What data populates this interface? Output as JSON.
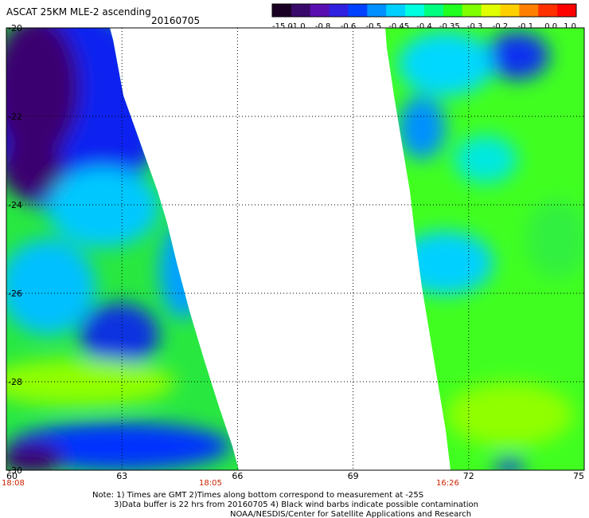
{
  "header": {
    "title": "ASCAT 25KM MLE-2 ascending",
    "date": "20160705"
  },
  "colorbar": {
    "labels": [
      "-15.0",
      "-1.0",
      "-0.8",
      "-0.6",
      "-0.5",
      "-0.45",
      "-0.4",
      "-0.35",
      "-0.3",
      "-0.2",
      "-0.1",
      "0.0",
      "1.0"
    ],
    "colors": [
      "#1a0022",
      "#3a0a6a",
      "#5a10b0",
      "#3020e0",
      "#0040ff",
      "#0090ff",
      "#00d0ff",
      "#00ffe0",
      "#00ff80",
      "#20ff20",
      "#80ff00",
      "#e0ff00",
      "#ffd000",
      "#ff8000",
      "#ff3000",
      "#ff0000"
    ]
  },
  "map": {
    "x_ticks": [
      "60",
      "63",
      "66",
      "69",
      "72",
      "75"
    ],
    "y_ticks": [
      "-20",
      "-22",
      "-24",
      "-26",
      "-28",
      "-30"
    ],
    "times": [
      "18:08",
      "18:05",
      "16:26"
    ]
  },
  "notes": [
    "Note: 1) Times are GMT 2)Times along bottom correspond to measurement at -25S",
    "3)Data buffer is 22 hrs from 20160705 4) Black wind barbs indicate possible contamination",
    "NOAA/NESDIS/Center for Satellite Applications and Research"
  ],
  "colors": {
    "low": "#2a0050",
    "mid_blue": "#1030f0",
    "cyan": "#00d8ff",
    "green": "#30ff30",
    "yellow_green": "#90ff00",
    "time_red": "#cc2200"
  }
}
